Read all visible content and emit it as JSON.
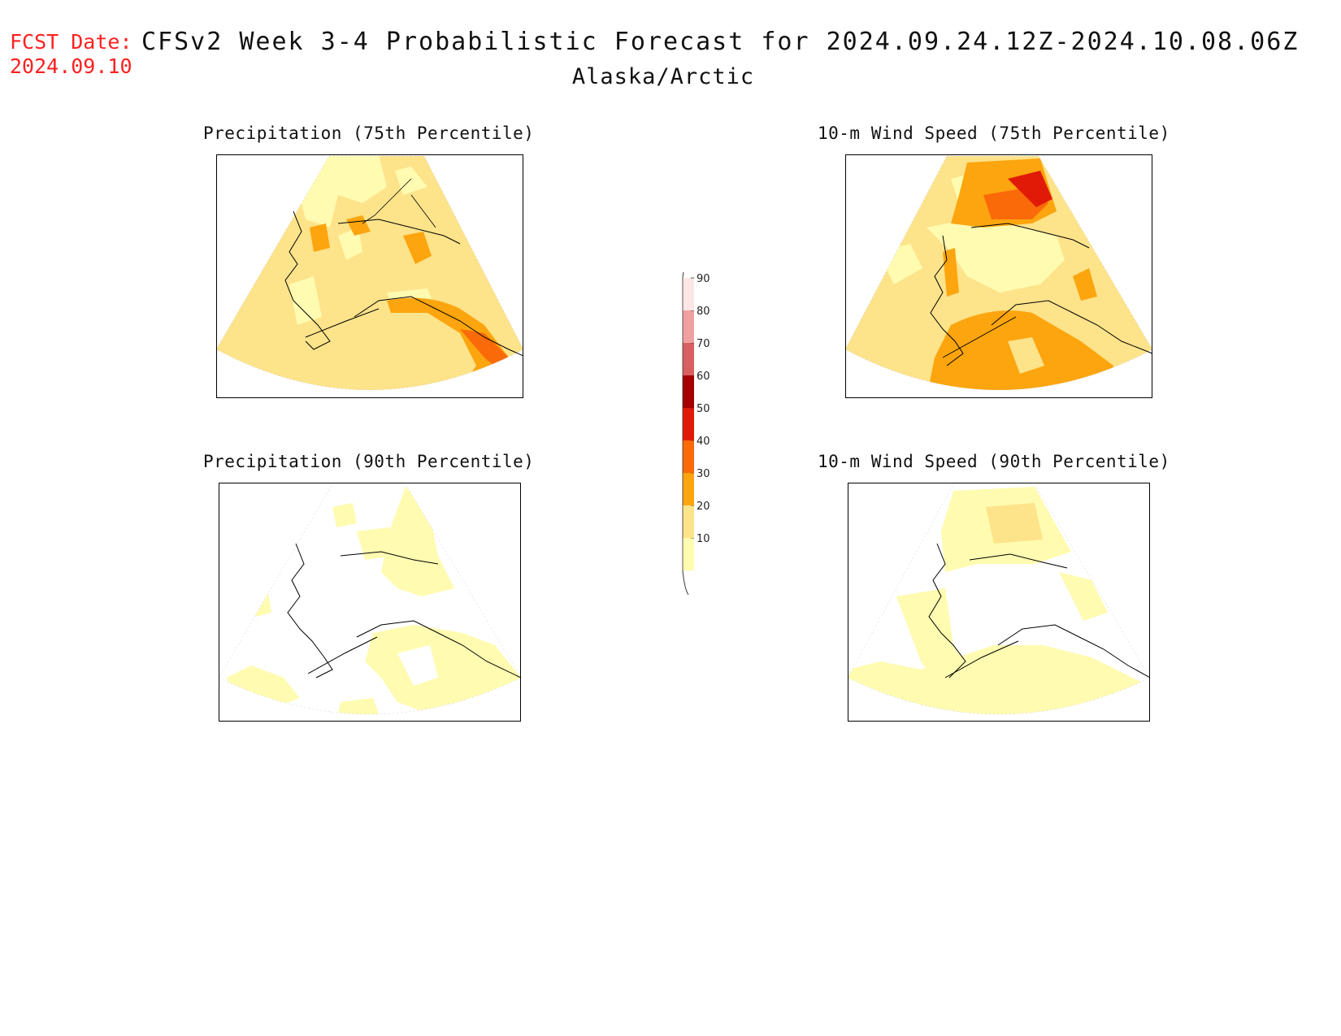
{
  "header": {
    "fcst_label": "FCST Date:",
    "fcst_date": "2024.09.10",
    "title": "CFSv2 Week 3-4 Probabilistic Forecast for 2024.09.24.12Z-2024.10.08.06Z",
    "region": "Alaska/Arctic"
  },
  "panels": [
    {
      "title": "Precipitation (75th Percentile)",
      "variable": "precipitation",
      "percentile": 75
    },
    {
      "title": "10-m Wind Speed (75th Percentile)",
      "variable": "wind_speed",
      "percentile": 75
    },
    {
      "title": "Precipitation (90th Percentile)",
      "variable": "precipitation",
      "percentile": 90
    },
    {
      "title": "10-m Wind Speed (90th Percentile)",
      "variable": "wind_speed",
      "percentile": 90
    }
  ],
  "legend": {
    "levels": [
      "10",
      "20",
      "30",
      "40",
      "50",
      "60",
      "70",
      "80",
      "90"
    ],
    "colors": [
      "#fffbb0",
      "#fde38a",
      "#fca50f",
      "#fb6a08",
      "#e11a08",
      "#a50000",
      "#d86060",
      "#f0a0a0",
      "#fde6e6"
    ]
  },
  "colors": {
    "c10": "#fffbb0",
    "c20": "#fde38a",
    "c30": "#fca50f",
    "c40": "#fb6a08",
    "c50": "#e11a08",
    "fcst_red": "#ff2020"
  }
}
